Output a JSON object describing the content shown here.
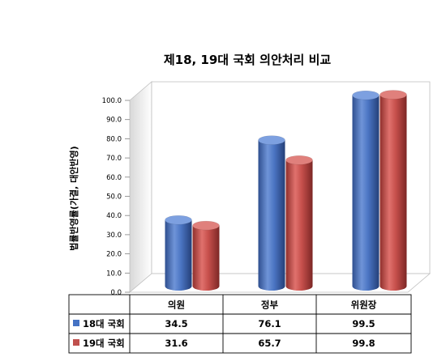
{
  "chart_data": {
    "type": "bar",
    "title": "제18, 19대 국회 의안처리 비교",
    "ylabel": "법률반영률(가결, 대안반영)",
    "xlabel": "",
    "categories": [
      "의원",
      "정부",
      "위원장"
    ],
    "series": [
      {
        "name": "18대 국회",
        "color": "#4472c4",
        "values": [
          34.5,
          76.1,
          99.5
        ]
      },
      {
        "name": "19대 국회",
        "color": "#c0504d",
        "values": [
          31.6,
          65.7,
          99.8
        ]
      }
    ],
    "ylim": [
      0,
      100
    ],
    "yticks": [
      "0.0",
      "10.0",
      "20.0",
      "30.0",
      "40.0",
      "50.0",
      "60.0",
      "70.0",
      "80.0",
      "90.0",
      "100.0"
    ],
    "table": [
      [
        "34.5",
        "76.1",
        "99.5"
      ],
      [
        "31.6",
        "65.7",
        "99.8"
      ]
    ],
    "grid": false,
    "legend": "data-table"
  }
}
